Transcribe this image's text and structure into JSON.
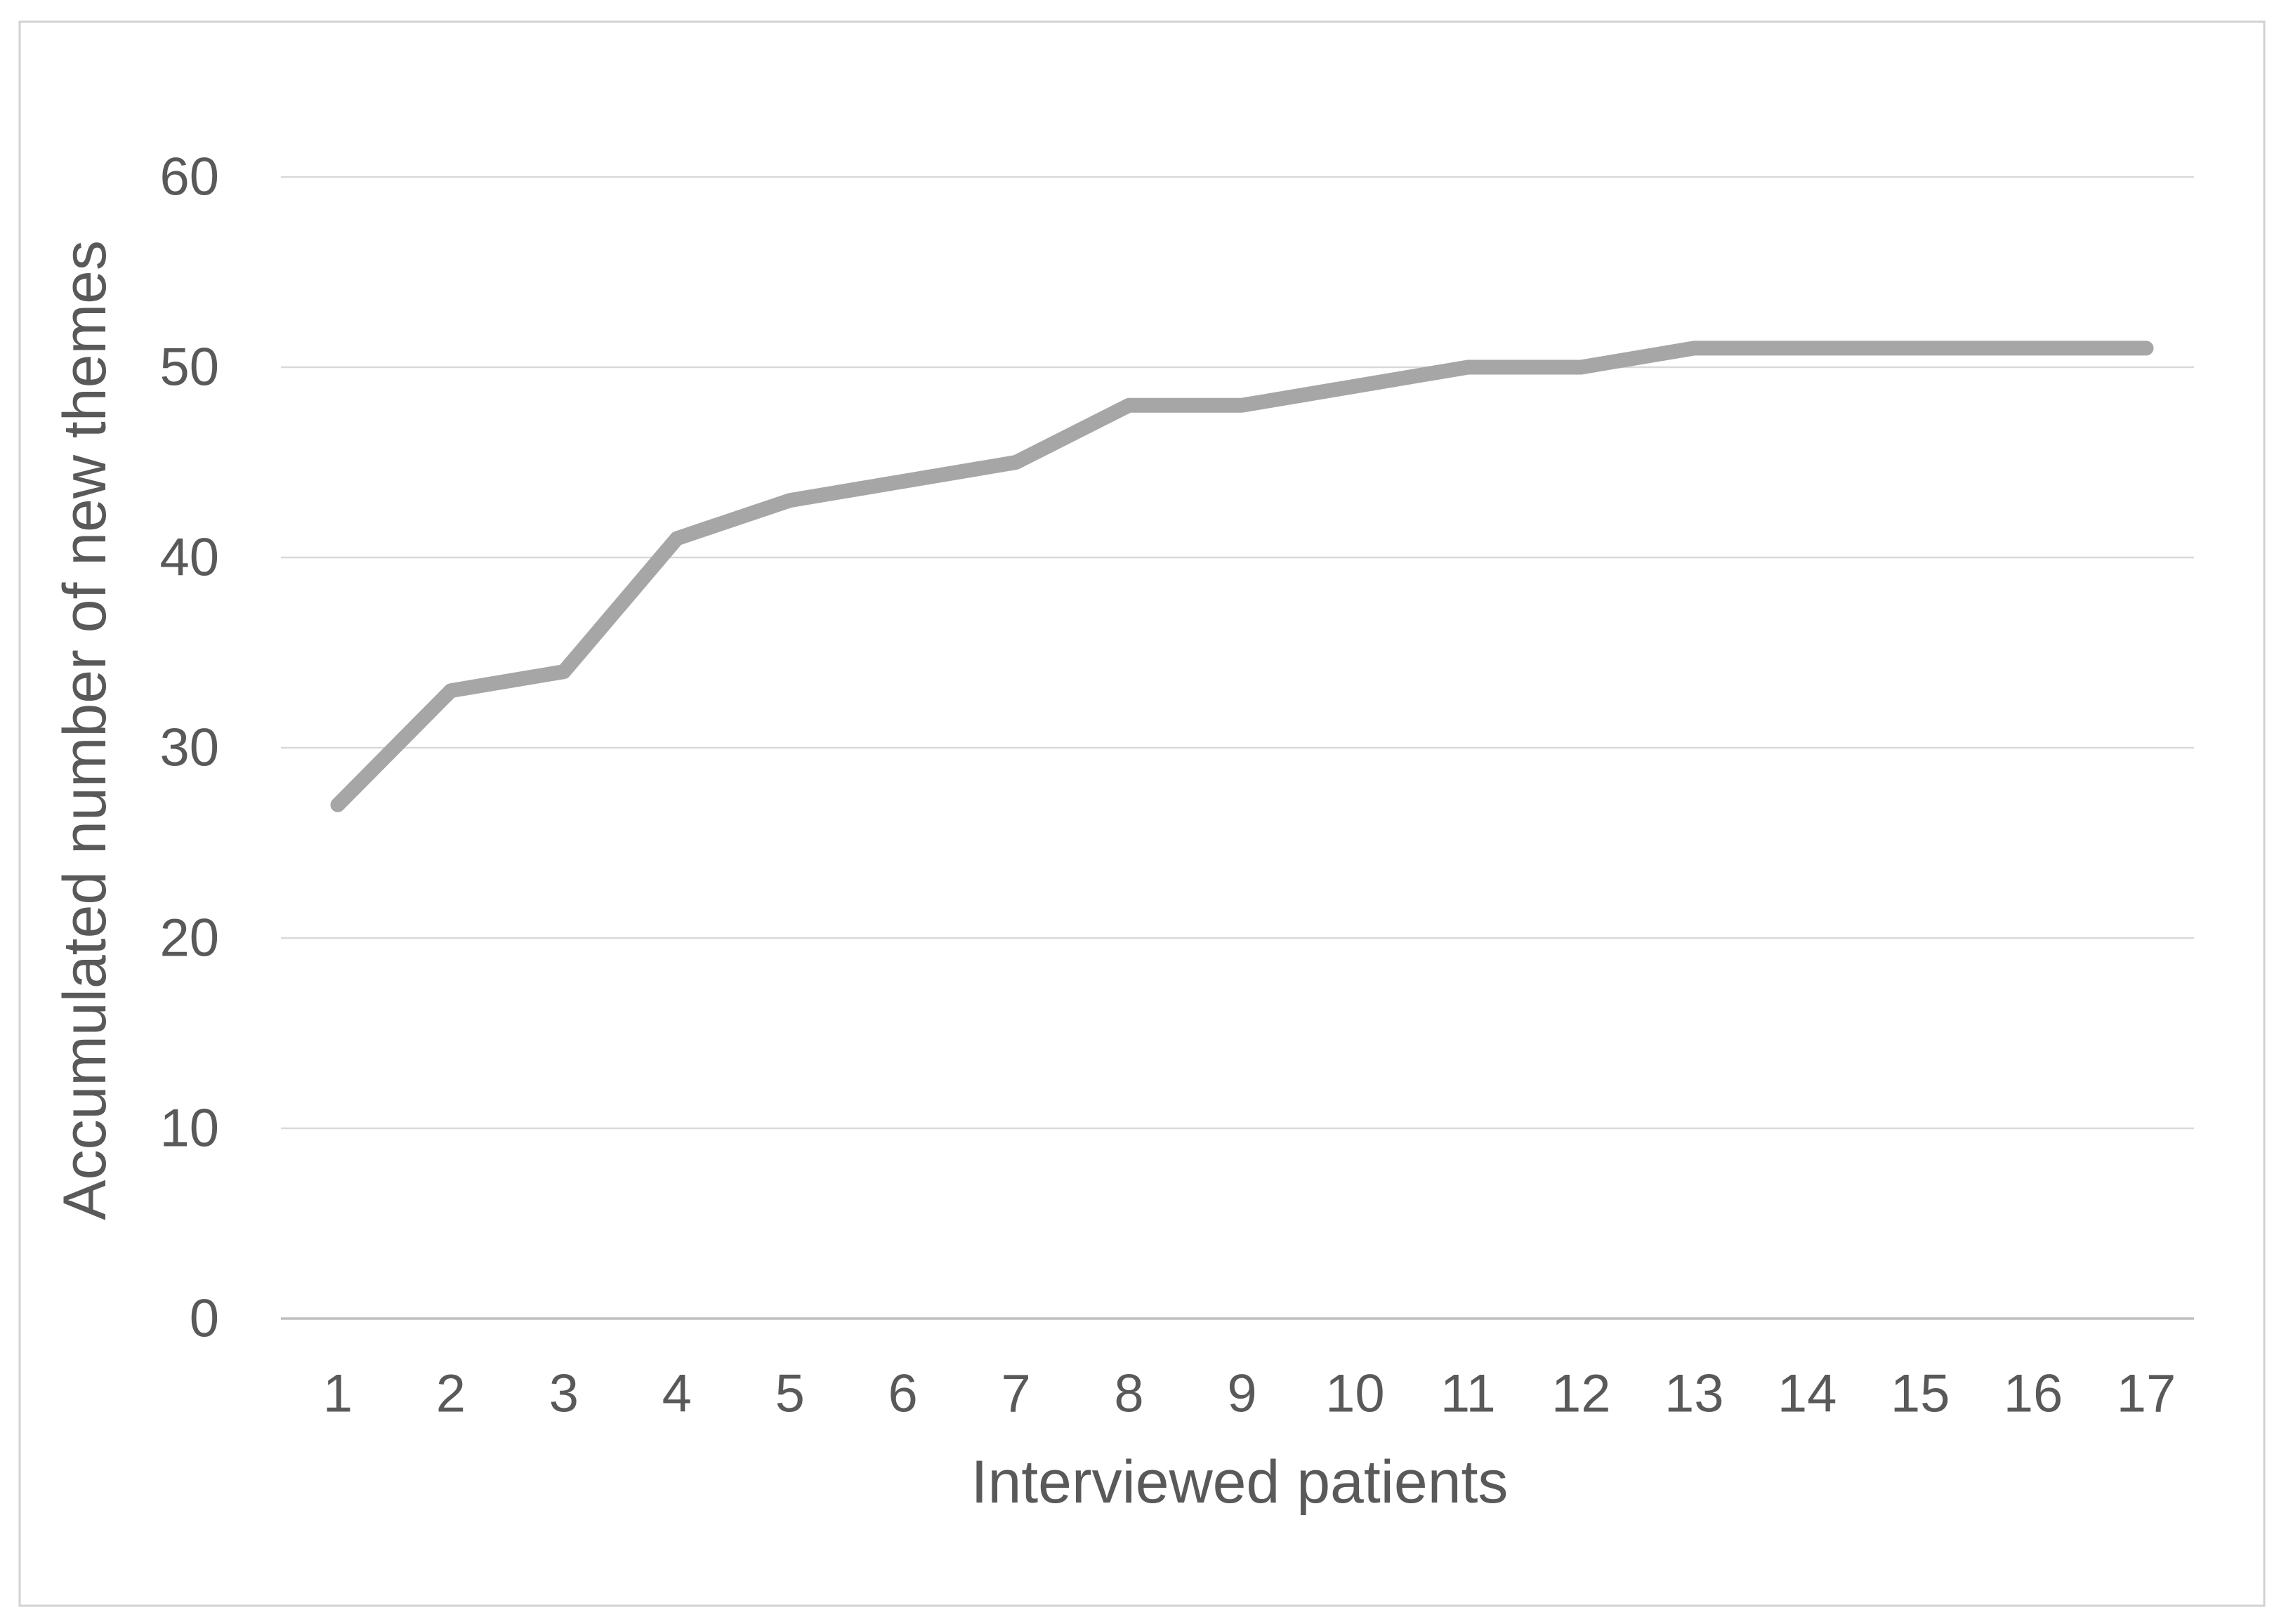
{
  "figure": {
    "background_color": "#ffffff",
    "border_color": "#d2d2d2"
  },
  "chart_data": {
    "type": "line",
    "title": "",
    "xlabel": "Interviewed patients",
    "ylabel": "Accumulated number of new themes",
    "categories": [
      "1",
      "2",
      "3",
      "4",
      "5",
      "6",
      "7",
      "8",
      "9",
      "10",
      "11",
      "12",
      "13",
      "14",
      "15",
      "16",
      "17"
    ],
    "series": [
      {
        "name": "Accumulated number of new themes",
        "values": [
          27,
          33,
          34,
          41,
          43,
          44,
          45,
          48,
          48,
          49,
          50,
          50,
          51,
          51,
          51,
          51,
          51
        ]
      }
    ],
    "y_ticks": [
      0,
      10,
      20,
      30,
      40,
      50,
      60
    ],
    "ylim": [
      0,
      60
    ],
    "grid": "horizontal",
    "legend": "none",
    "line_color": "#a6a6a6",
    "gridline_color": "#d9d9d9",
    "axis_line_color": "#bfbfbf",
    "text_color": "#595959"
  }
}
